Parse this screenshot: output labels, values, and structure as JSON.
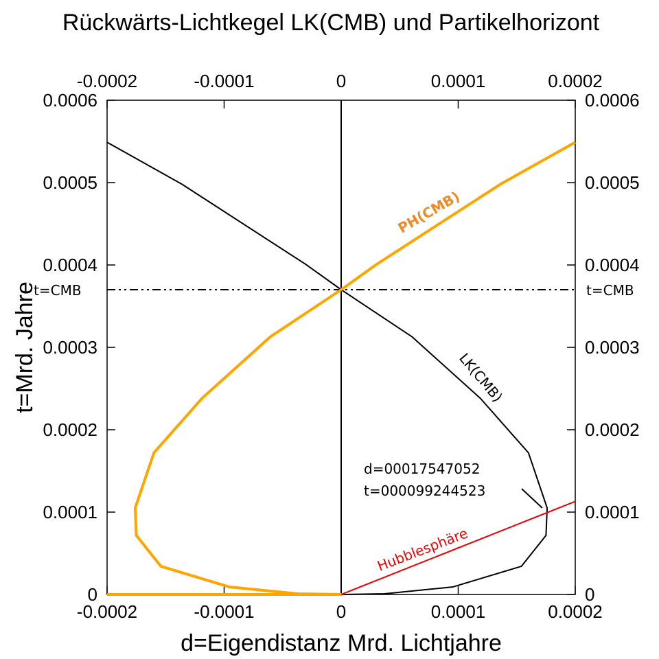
{
  "chart_data": {
    "type": "line",
    "title": "Rückwärts-Lichtkegel LK(CMB) und Partikelhorizont",
    "x_label": "d=Eigendistanz Mrd. Lichtjahre",
    "y_label": "t=Mrd. Jahre",
    "xlim": [
      -0.0002,
      0.0002
    ],
    "ylim": [
      0,
      0.0006
    ],
    "xticks": [
      -0.0002,
      -0.0001,
      0,
      0.0001,
      0.0002
    ],
    "yticks": [
      0,
      0.0001,
      0.0002,
      0.0003,
      0.0004,
      0.0005,
      0.0006
    ],
    "series": [
      {
        "name": "LK(CMB)",
        "color": "#000000",
        "x": [
          -0.0002,
          -0.000136,
          -3.05e-05,
          0,
          6.04e-05,
          0.000119,
          0.00016,
          0.000176,
          0.000175,
          0.000154,
          9.56e-05,
          3.7e-05,
          0
        ],
        "values": [
          0.000549,
          0.000498,
          0.000401,
          0.00037,
          0.000313,
          0.000238,
          0.000172,
          0.000105,
          7.17e-05,
          3.42e-05,
          9.2e-06,
          8e-07,
          0
        ]
      },
      {
        "name": "PH(CMB)",
        "color": "#ffa500",
        "x": [
          -0.0002,
          0,
          -3.7e-05,
          -9.56e-05,
          -0.000154,
          -0.000175,
          -0.000176,
          -0.00016,
          -0.000119,
          -6.04e-05,
          0,
          3.05e-05,
          0.000136,
          0.0002
        ],
        "values": [
          0,
          0,
          8e-07,
          9.2e-06,
          3.42e-05,
          7.17e-05,
          0.000105,
          0.000172,
          0.000238,
          0.000313,
          0.00037,
          0.000401,
          0.000498,
          0.000549
        ]
      },
      {
        "name": "Hubblesphäre",
        "color": "#ee0000",
        "x": [
          0,
          0.0002
        ],
        "values": [
          0,
          0.000113
        ]
      }
    ],
    "hline": {
      "value": 0.00037,
      "label": "t=CMB"
    },
    "annotation": [
      "d=00017547052",
      "t=000099244523"
    ]
  }
}
